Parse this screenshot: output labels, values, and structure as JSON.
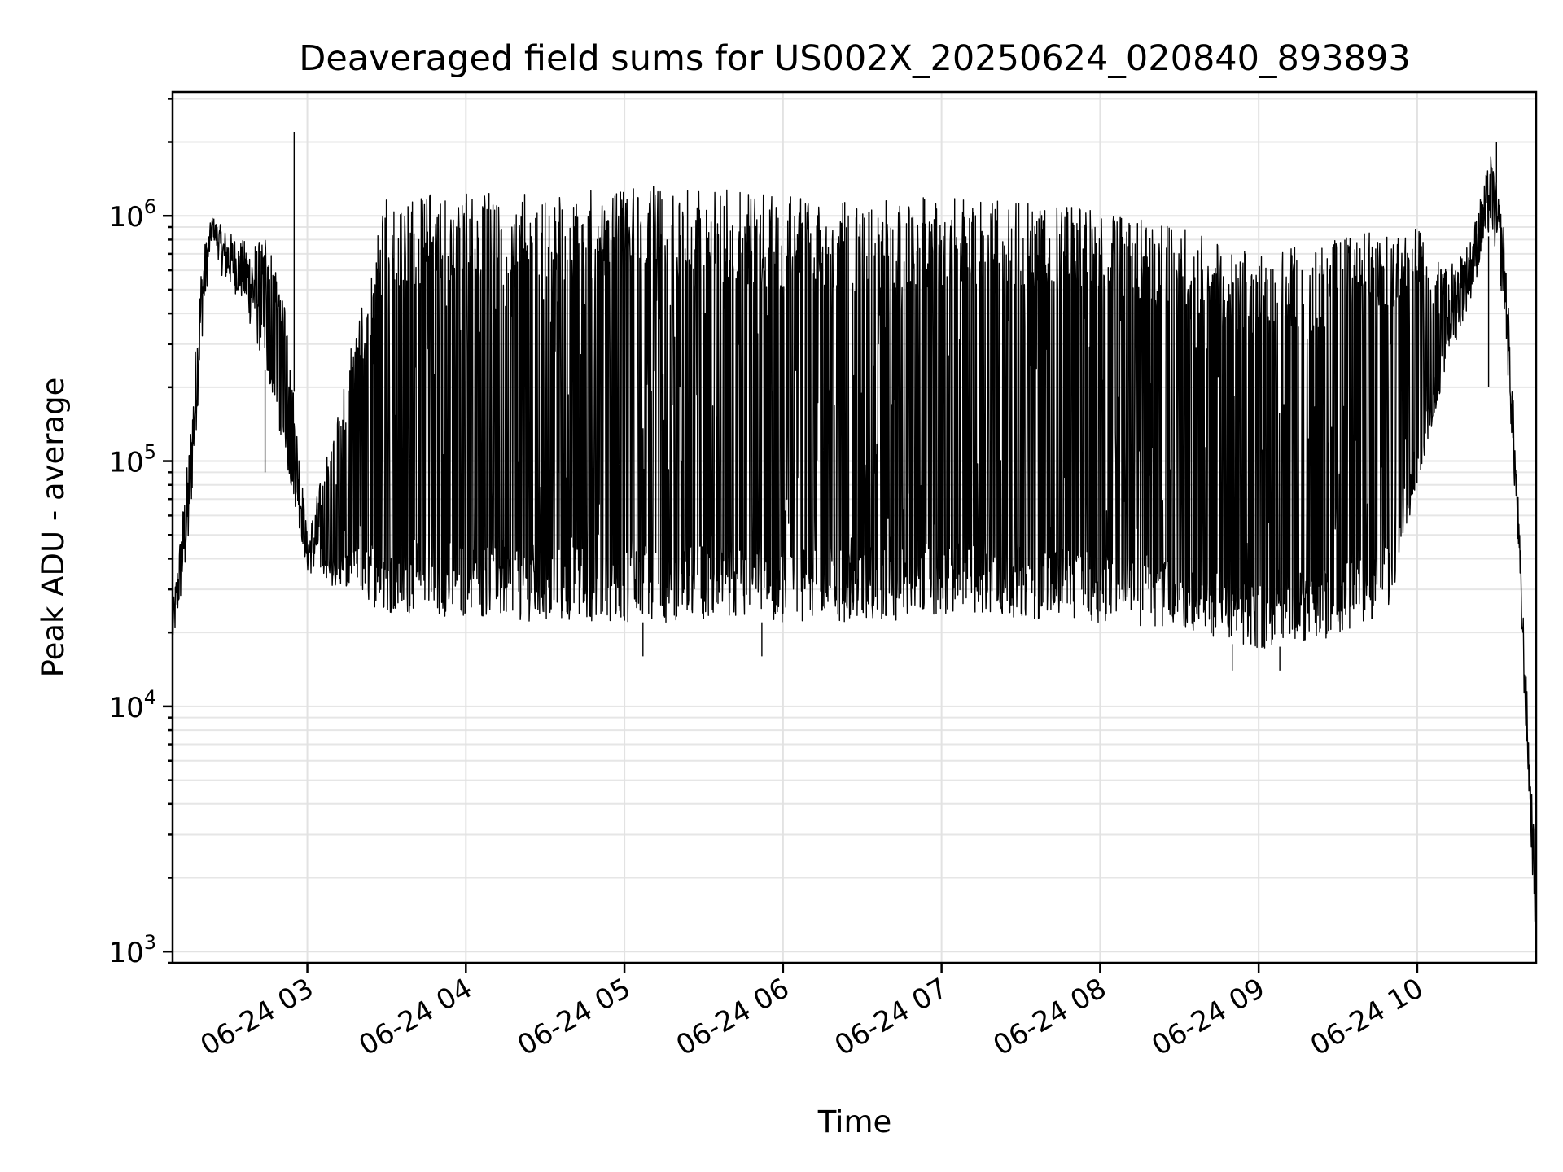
{
  "chart_data": {
    "type": "line",
    "title": "Deaveraged field sums for US002X_20250624_020840_893893",
    "xlabel": "Time",
    "ylabel": "Peak ADU - average",
    "yscale": "log",
    "grid": true,
    "xlim": [
      "2025-06-24 02:09",
      "2025-06-24 10:45"
    ],
    "ylim": [
      900,
      3200000
    ],
    "x_ticks": [
      {
        "value": "2025-06-24 03:00",
        "label": "06-24 03"
      },
      {
        "value": "2025-06-24 04:00",
        "label": "06-24 04"
      },
      {
        "value": "2025-06-24 05:00",
        "label": "06-24 05"
      },
      {
        "value": "2025-06-24 06:00",
        "label": "06-24 06"
      },
      {
        "value": "2025-06-24 07:00",
        "label": "06-24 07"
      },
      {
        "value": "2025-06-24 08:00",
        "label": "06-24 08"
      },
      {
        "value": "2025-06-24 09:00",
        "label": "06-24 09"
      },
      {
        "value": "2025-06-24 10:00",
        "label": "06-24 10"
      }
    ],
    "y_ticks": [
      {
        "value": 1000,
        "base": "10",
        "exp": "3"
      },
      {
        "value": 10000,
        "base": "10",
        "exp": "4"
      },
      {
        "value": 100000,
        "base": "10",
        "exp": "5"
      },
      {
        "value": 1000000,
        "base": "10",
        "exp": "6"
      }
    ],
    "series": [
      {
        "color": "#000000",
        "envelope": [
          {
            "t": "2025-06-24 02:09",
            "low": 17000,
            "high": 25000
          },
          {
            "t": "2025-06-24 02:15",
            "low": 40000,
            "high": 110000
          },
          {
            "t": "2025-06-24 02:20",
            "low": 300000,
            "high": 700000
          },
          {
            "t": "2025-06-24 02:24",
            "low": 850000,
            "high": 1000000
          },
          {
            "t": "2025-06-24 02:28",
            "low": 550000,
            "high": 900000
          },
          {
            "t": "2025-06-24 02:35",
            "low": 450000,
            "high": 800000
          },
          {
            "t": "2025-06-24 02:45",
            "low": 220000,
            "high": 800000
          },
          {
            "t": "2025-06-24 02:52",
            "low": 100000,
            "high": 400000
          },
          {
            "t": "2025-06-24 02:56",
            "low": 60000,
            "high": 150000
          },
          {
            "t": "2025-06-24 03:00",
            "low": 35000,
            "high": 50000
          },
          {
            "t": "2025-06-24 03:30",
            "low": 24000,
            "high": 1200000
          },
          {
            "t": "2025-06-24 04:00",
            "low": 23000,
            "high": 1250000
          },
          {
            "t": "2025-06-24 04:30",
            "low": 22000,
            "high": 1250000
          },
          {
            "t": "2025-06-24 05:00",
            "low": 22000,
            "high": 1300000
          },
          {
            "t": "2025-06-24 05:30",
            "low": 22000,
            "high": 1350000
          },
          {
            "t": "2025-06-24 06:00",
            "low": 22000,
            "high": 1200000
          },
          {
            "t": "2025-06-24 06:30",
            "low": 22000,
            "high": 1150000
          },
          {
            "t": "2025-06-24 07:00",
            "low": 23000,
            "high": 1200000
          },
          {
            "t": "2025-06-24 07:30",
            "low": 23000,
            "high": 1150000
          },
          {
            "t": "2025-06-24 08:00",
            "low": 22000,
            "high": 1050000
          },
          {
            "t": "2025-06-24 08:30",
            "low": 20000,
            "high": 900000
          },
          {
            "t": "2025-06-24 09:00",
            "low": 17000,
            "high": 700000
          },
          {
            "t": "2025-06-24 09:30",
            "low": 19000,
            "high": 800000
          },
          {
            "t": "2025-06-24 09:50",
            "low": 25000,
            "high": 900000
          },
          {
            "t": "2025-06-24 10:00",
            "low": 80000,
            "high": 900000
          },
          {
            "t": "2025-06-24 10:10",
            "low": 220000,
            "high": 600000
          },
          {
            "t": "2025-06-24 10:20",
            "low": 450000,
            "high": 800000
          },
          {
            "t": "2025-06-24 10:28",
            "low": 900000,
            "high": 1800000
          },
          {
            "t": "2025-06-24 10:33",
            "low": 400000,
            "high": 900000
          },
          {
            "t": "2025-06-24 10:38",
            "low": 45000,
            "high": 80000
          },
          {
            "t": "2025-06-24 10:41",
            "low": 8000,
            "high": 15000
          },
          {
            "t": "2025-06-24 10:45",
            "low": 1000,
            "high": 2000
          }
        ],
        "spikes": [
          {
            "t": "2025-06-24 02:44",
            "value": 90000
          },
          {
            "t": "2025-06-24 02:55",
            "value": 2200000
          },
          {
            "t": "2025-06-24 10:30",
            "value": 2000000
          },
          {
            "t": "2025-06-24 10:27",
            "value": 200000
          },
          {
            "t": "2025-06-24 08:50",
            "value": 14000
          },
          {
            "t": "2025-06-24 09:08",
            "value": 14000
          },
          {
            "t": "2025-06-24 05:52",
            "value": 16000
          },
          {
            "t": "2025-06-24 05:07",
            "value": 16000
          }
        ]
      }
    ]
  }
}
